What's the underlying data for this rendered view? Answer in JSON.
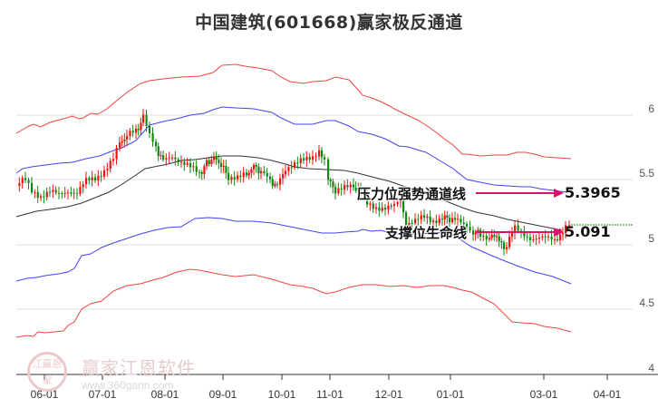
{
  "title": "中国建筑(601668)赢家极反通道",
  "watermark": {
    "brand": "赢家江恩软件",
    "url": "www.360gann.com",
    "logo_text": "江赢恩家"
  },
  "chart_data": {
    "type": "candlestick",
    "title": "中国建筑(601668)赢家极反通道",
    "ylim": [
      4,
      6.2
    ],
    "yticks": [
      {
        "label": "6",
        "value": 6
      },
      {
        "label": "5.5",
        "value": 5.5
      },
      {
        "label": "5",
        "value": 5
      },
      {
        "label": "4.5",
        "value": 4.5
      },
      {
        "label": "4",
        "value": 4
      }
    ],
    "xticks": [
      "06-01",
      "07-01",
      "08-01",
      "09-01",
      "10-01",
      "11-01",
      "12-01",
      "01-01",
      "03-01",
      "04-01"
    ],
    "grid": true,
    "series": [
      {
        "name": "upper_red_band",
        "color": "#ee3333",
        "values": [
          5.77,
          5.83,
          5.82,
          5.86,
          5.86,
          5.87,
          5.93,
          6.02,
          6.05,
          6.07,
          6.09,
          6.11,
          6.12,
          6.17,
          6.17,
          6.15,
          6.1,
          6.1,
          6.06,
          6.0,
          5.95,
          5.85,
          5.72,
          5.71,
          5.71,
          5.7,
          5.7,
          5.68,
          5.68,
          5.67
        ]
      },
      {
        "name": "upper_blue_band",
        "color": "#3333ee",
        "values": [
          5.45,
          5.5,
          5.52,
          5.56,
          5.6,
          5.65,
          5.75,
          5.8,
          5.82,
          5.85,
          5.9,
          5.9,
          5.89,
          5.83,
          5.83,
          5.79,
          5.74,
          5.69,
          5.63,
          5.55,
          5.48,
          5.42,
          5.41,
          5.4,
          5.4,
          5.4
        ]
      },
      {
        "name": "middle_black",
        "color": "#222222",
        "values": [
          5.27,
          5.3,
          5.32,
          5.35,
          5.42,
          5.5,
          5.57,
          5.62,
          5.65,
          5.66,
          5.66,
          5.64,
          5.6,
          5.55,
          5.53,
          5.5,
          5.45,
          5.38,
          5.3,
          5.24,
          5.2,
          5.17,
          5.14,
          5.12
        ]
      },
      {
        "name": "lower_blue_band",
        "color": "#3333ee",
        "values": [
          4.72,
          4.76,
          4.78,
          4.82,
          4.92,
          4.96,
          5.0,
          5.04,
          5.05,
          5.04,
          5.04,
          5.01,
          4.98,
          4.97,
          4.96,
          5.0,
          4.97,
          4.95,
          4.87,
          4.77,
          4.72,
          4.71,
          4.69,
          4.68
        ]
      },
      {
        "name": "lower_red_band",
        "color": "#ee3333",
        "values": [
          4.29,
          4.3,
          4.33,
          4.34,
          4.46,
          4.52,
          4.58,
          4.62,
          4.67,
          4.69,
          4.67,
          4.65,
          4.63,
          4.6,
          4.62,
          4.6,
          4.58,
          4.56,
          4.47,
          4.38,
          4.34,
          4.32,
          4.31
        ]
      }
    ],
    "annotations": [
      {
        "label": "压力位强势通道线",
        "value": "5.3965",
        "arrow_color": "#e0106a"
      },
      {
        "label": "支撑位生命线",
        "value": "5.091",
        "arrow_color": "#e0106a"
      }
    ],
    "last_price_line": {
      "value": 5.14,
      "color": "#228822",
      "style": "dashed"
    }
  }
}
